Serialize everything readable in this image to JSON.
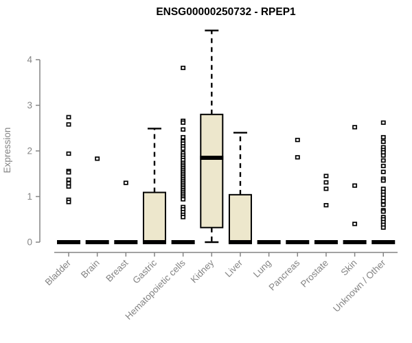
{
  "figure": {
    "background": "#ffffff"
  },
  "chart_data": {
    "type": "boxplot",
    "title": "ENSG00000250732 - RPEP1",
    "ylabel": "Expression",
    "xlabel": "",
    "yticks": [
      0,
      1,
      2,
      3,
      4
    ],
    "ylim": [
      0,
      4.7
    ],
    "grid": false,
    "legend": "none",
    "colors": {
      "box_fill": "#EDE7CC",
      "box_stroke": "#000000",
      "median": "#000000",
      "whisker": "#000000",
      "outlier_stroke": "#000000",
      "outlier_fill": "#ffffff",
      "axis": "#848484",
      "tick_label": "#848484",
      "title": "#000000"
    },
    "categories": [
      "Bladder",
      "Brain",
      "Breast",
      "Gastric",
      "Hematopoietic cells",
      "Kidney",
      "Liver",
      "Lung",
      "Pancreas",
      "Prostate",
      "Skin",
      "Unknown / Other"
    ],
    "boxes": [
      {
        "category": "Bladder",
        "q1": 0,
        "median": 0,
        "q3": 0,
        "whisker_low": 0,
        "whisker_high": 0,
        "outliers": [
          2.74,
          2.58,
          1.94,
          1.56,
          1.53,
          1.37,
          1.29,
          1.22,
          0.93,
          0.88
        ]
      },
      {
        "category": "Brain",
        "q1": 0,
        "median": 0,
        "q3": 0,
        "whisker_low": 0,
        "whisker_high": 0,
        "outliers": [
          1.83
        ]
      },
      {
        "category": "Breast",
        "q1": 0,
        "median": 0,
        "q3": 0,
        "whisker_low": 0,
        "whisker_high": 0,
        "outliers": [
          1.3
        ]
      },
      {
        "category": "Gastric",
        "q1": 0,
        "median": 0,
        "q3": 1.09,
        "whisker_low": 0,
        "whisker_high": 2.49,
        "outliers": []
      },
      {
        "category": "Hematopoietic cells",
        "q1": 0,
        "median": 0,
        "q3": 0,
        "whisker_low": 0,
        "whisker_high": 0,
        "outliers": [
          3.82,
          2.66,
          2.62,
          2.47,
          2.3,
          2.21,
          2.16,
          2.1,
          2.05,
          1.95,
          1.9,
          1.85,
          1.8,
          1.74,
          1.7,
          1.66,
          1.62,
          1.58,
          1.54,
          1.5,
          1.46,
          1.42,
          1.38,
          1.34,
          1.3,
          1.26,
          1.22,
          1.18,
          1.14,
          1.1,
          1.06,
          1.02,
          0.98,
          0.94,
          0.77,
          0.72,
          0.66,
          0.6,
          0.55
        ]
      },
      {
        "category": "Kidney",
        "q1": 0.32,
        "median": 1.85,
        "q3": 2.8,
        "whisker_low": 0,
        "whisker_high": 4.64,
        "outliers": []
      },
      {
        "category": "Liver",
        "q1": 0,
        "median": 0,
        "q3": 1.04,
        "whisker_low": 0,
        "whisker_high": 2.4,
        "outliers": []
      },
      {
        "category": "Lung",
        "q1": 0,
        "median": 0,
        "q3": 0,
        "whisker_low": 0,
        "whisker_high": 0,
        "outliers": []
      },
      {
        "category": "Pancreas",
        "q1": 0,
        "median": 0,
        "q3": 0,
        "whisker_low": 0,
        "whisker_high": 0,
        "outliers": [
          2.24,
          1.86
        ]
      },
      {
        "category": "Prostate",
        "q1": 0,
        "median": 0,
        "q3": 0,
        "whisker_low": 0,
        "whisker_high": 0,
        "outliers": [
          1.45,
          1.31,
          1.17,
          0.81
        ]
      },
      {
        "category": "Skin",
        "q1": 0,
        "median": 0,
        "q3": 0,
        "whisker_low": 0,
        "whisker_high": 0,
        "outliers": [
          2.52,
          1.24,
          0.4
        ]
      },
      {
        "category": "Unknown / Other",
        "q1": 0,
        "median": 0,
        "q3": 0,
        "whisker_low": 0,
        "whisker_high": 0,
        "outliers": [
          2.62,
          2.3,
          2.2,
          2.08,
          2.02,
          1.97,
          1.9,
          1.79,
          1.67,
          1.54,
          1.39,
          1.35,
          1.17,
          1.1,
          1.04,
          0.97,
          0.9,
          0.82,
          0.7,
          0.67,
          0.55,
          0.5,
          0.44,
          0.38,
          0.32
        ]
      }
    ]
  }
}
